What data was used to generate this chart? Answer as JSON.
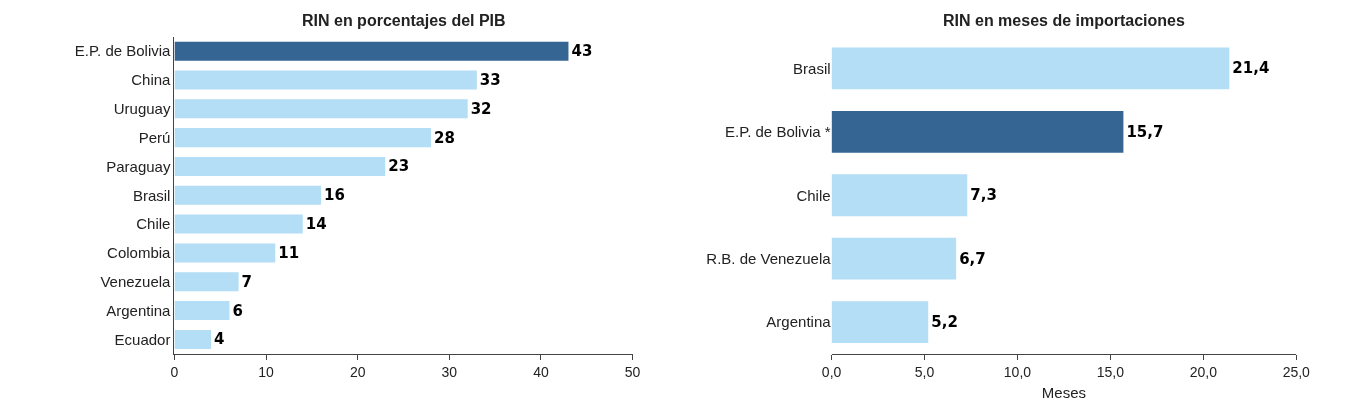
{
  "chart_data": [
    {
      "type": "bar",
      "orientation": "horizontal",
      "title": "RIN en porcentajes del PIB",
      "categories": [
        "E.P. de Bolivia",
        "China",
        "Uruguay",
        "Perú",
        "Paraguay",
        "Brasil",
        "Chile",
        "Colombia",
        "Venezuela",
        "Argentina",
        "Ecuador"
      ],
      "values": [
        43,
        33,
        32,
        28,
        23,
        16,
        14,
        11,
        7,
        6,
        4
      ],
      "colors": [
        "#356693",
        "#b3def5",
        "#b3def5",
        "#b3def5",
        "#b3def5",
        "#b3def5",
        "#b3def5",
        "#b3def5",
        "#b3def5",
        "#b3def5",
        "#b3def5"
      ],
      "value_labels": [
        "43",
        "33",
        "32",
        "28",
        "23",
        "16",
        "14",
        "11",
        "7",
        "6",
        "4"
      ],
      "xlim": [
        0,
        50
      ],
      "xticks": [
        0,
        10,
        20,
        30,
        40,
        50
      ]
    },
    {
      "type": "bar",
      "orientation": "horizontal",
      "title": "RIN en meses de importaciones",
      "xlabel": "Meses",
      "categories": [
        "Brasil",
        "E.P. de Bolivia *",
        "Chile",
        "R.B. de Venezuela",
        "Argentina"
      ],
      "values": [
        21.4,
        15.7,
        7.3,
        6.7,
        5.2
      ],
      "colors": [
        "#b3def5",
        "#356693",
        "#b3def5",
        "#b3def5",
        "#b3def5"
      ],
      "value_labels": [
        "21,4",
        "15,7",
        "7,3",
        "6,7",
        "5,2"
      ],
      "xlim": [
        0,
        25
      ],
      "xticks": [
        {
          "value": 0,
          "label": "0,0"
        },
        {
          "value": 5,
          "label": "5,0"
        },
        {
          "value": 10,
          "label": "10,0"
        },
        {
          "value": 15,
          "label": "15,0"
        },
        {
          "value": 20,
          "label": "20,0"
        },
        {
          "value": 25,
          "label": "25,0"
        }
      ]
    }
  ]
}
